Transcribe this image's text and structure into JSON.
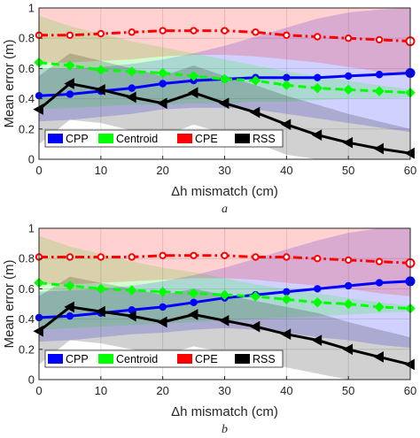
{
  "chart_data": [
    {
      "type": "line",
      "panel_label": "a",
      "xlabel": "Δh mismatch (cm)",
      "ylabel": "Mean error (m)",
      "xlim": [
        0,
        60
      ],
      "ylim": [
        0,
        1
      ],
      "xticks": [
        0,
        10,
        20,
        30,
        40,
        50,
        60
      ],
      "yticks": [
        0,
        0.2,
        0.4,
        0.6,
        0.8,
        1
      ],
      "x": [
        0,
        5,
        10,
        15,
        20,
        25,
        30,
        35,
        40,
        45,
        50,
        55,
        60
      ],
      "legend_placement": "bottom-left",
      "grid": true,
      "series": [
        {
          "name": "CPP",
          "color": "#0000ff",
          "linestyle": "solid",
          "marker": "circle",
          "values": [
            0.42,
            0.43,
            0.45,
            0.47,
            0.5,
            0.52,
            0.53,
            0.54,
            0.54,
            0.54,
            0.55,
            0.56,
            0.57
          ],
          "band_upper": [
            0.6,
            0.6,
            0.61,
            0.63,
            0.66,
            0.7,
            0.75,
            0.81,
            0.87,
            0.93,
            0.97,
            0.99,
            1.0
          ],
          "band_lower": [
            0.25,
            0.26,
            0.28,
            0.3,
            0.33,
            0.34,
            0.34,
            0.33,
            0.3,
            0.27,
            0.24,
            0.21,
            0.18
          ]
        },
        {
          "name": "Centroid",
          "color": "#00ff00",
          "linestyle": "dashed",
          "marker": "diamond",
          "values": [
            0.64,
            0.62,
            0.59,
            0.58,
            0.57,
            0.55,
            0.53,
            0.52,
            0.49,
            0.47,
            0.46,
            0.45,
            0.44
          ],
          "band_upper": [
            0.95,
            0.88,
            0.83,
            0.78,
            0.74,
            0.7,
            0.66,
            0.62,
            0.58,
            0.55,
            0.52,
            0.49,
            0.46
          ],
          "band_lower": [
            0.33,
            0.34,
            0.35,
            0.36,
            0.36,
            0.37,
            0.37,
            0.38,
            0.38,
            0.39,
            0.4,
            0.4,
            0.41
          ]
        },
        {
          "name": "CPE",
          "color": "#ff0000",
          "linestyle": "dashdot",
          "marker": "circle",
          "values": [
            0.82,
            0.82,
            0.83,
            0.84,
            0.85,
            0.85,
            0.85,
            0.84,
            0.82,
            0.81,
            0.8,
            0.79,
            0.78
          ],
          "band_upper": [
            1.0,
            1.0,
            1.0,
            1.0,
            1.0,
            1.0,
            1.0,
            1.0,
            1.0,
            1.0,
            1.0,
            1.0,
            1.0
          ],
          "band_lower": [
            0.64,
            0.64,
            0.65,
            0.66,
            0.68,
            0.69,
            0.69,
            0.68,
            0.66,
            0.64,
            0.61,
            0.58,
            0.55
          ]
        },
        {
          "name": "RSS",
          "color": "#000000",
          "linestyle": "solid",
          "marker": "triangle-left",
          "values": [
            0.33,
            0.5,
            0.46,
            0.41,
            0.37,
            0.44,
            0.37,
            0.31,
            0.23,
            0.16,
            0.11,
            0.07,
            0.04
          ],
          "band_upper": [
            0.55,
            0.7,
            0.65,
            0.6,
            0.55,
            0.62,
            0.55,
            0.49,
            0.42,
            0.36,
            0.3,
            0.25,
            0.2
          ],
          "band_lower": [
            0.1,
            0.26,
            0.24,
            0.19,
            0.15,
            0.23,
            0.17,
            0.11,
            0.03,
            0.0,
            0.0,
            0.0,
            0.0
          ]
        }
      ]
    },
    {
      "type": "line",
      "panel_label": "b",
      "xlabel": "Δh mismatch (cm)",
      "ylabel": "Mean error (m)",
      "xlim": [
        0,
        60
      ],
      "ylim": [
        0,
        1
      ],
      "xticks": [
        0,
        10,
        20,
        30,
        40,
        50,
        60
      ],
      "yticks": [
        0,
        0.2,
        0.4,
        0.6,
        0.8,
        1
      ],
      "x": [
        0,
        5,
        10,
        15,
        20,
        25,
        30,
        35,
        40,
        45,
        50,
        55,
        60
      ],
      "legend_placement": "bottom-left",
      "grid": true,
      "series": [
        {
          "name": "CPP",
          "color": "#0000ff",
          "linestyle": "solid",
          "marker": "circle",
          "values": [
            0.41,
            0.42,
            0.44,
            0.46,
            0.48,
            0.51,
            0.54,
            0.56,
            0.58,
            0.6,
            0.62,
            0.64,
            0.65
          ],
          "band_upper": [
            0.58,
            0.59,
            0.6,
            0.62,
            0.65,
            0.69,
            0.74,
            0.8,
            0.86,
            0.92,
            0.97,
            1.0,
            1.0
          ],
          "band_lower": [
            0.25,
            0.26,
            0.28,
            0.3,
            0.31,
            0.33,
            0.34,
            0.33,
            0.31,
            0.28,
            0.26,
            0.23,
            0.21
          ]
        },
        {
          "name": "Centroid",
          "color": "#00ff00",
          "linestyle": "dashed",
          "marker": "diamond",
          "values": [
            0.64,
            0.62,
            0.6,
            0.59,
            0.58,
            0.57,
            0.56,
            0.55,
            0.53,
            0.51,
            0.5,
            0.48,
            0.47
          ],
          "band_upper": [
            0.95,
            0.88,
            0.83,
            0.78,
            0.74,
            0.71,
            0.67,
            0.63,
            0.6,
            0.57,
            0.54,
            0.51,
            0.49
          ],
          "band_lower": [
            0.33,
            0.34,
            0.35,
            0.36,
            0.37,
            0.38,
            0.39,
            0.4,
            0.41,
            0.42,
            0.43,
            0.44,
            0.45
          ]
        },
        {
          "name": "CPE",
          "color": "#ff0000",
          "linestyle": "dashdot",
          "marker": "circle",
          "values": [
            0.81,
            0.81,
            0.81,
            0.81,
            0.82,
            0.82,
            0.82,
            0.81,
            0.81,
            0.8,
            0.79,
            0.78,
            0.77
          ],
          "band_upper": [
            1.0,
            1.0,
            1.0,
            1.0,
            1.0,
            1.0,
            1.0,
            1.0,
            1.0,
            1.0,
            1.0,
            1.0,
            1.0
          ],
          "band_lower": [
            0.63,
            0.63,
            0.64,
            0.65,
            0.66,
            0.67,
            0.67,
            0.66,
            0.64,
            0.62,
            0.6,
            0.57,
            0.55
          ]
        },
        {
          "name": "RSS",
          "color": "#000000",
          "linestyle": "solid",
          "marker": "triangle-left",
          "values": [
            0.32,
            0.48,
            0.45,
            0.42,
            0.38,
            0.43,
            0.39,
            0.35,
            0.3,
            0.26,
            0.2,
            0.15,
            0.1
          ],
          "band_upper": [
            0.55,
            0.68,
            0.64,
            0.6,
            0.56,
            0.6,
            0.56,
            0.52,
            0.48,
            0.44,
            0.38,
            0.33,
            0.28
          ],
          "band_lower": [
            0.1,
            0.26,
            0.24,
            0.2,
            0.16,
            0.22,
            0.18,
            0.14,
            0.08,
            0.04,
            0.0,
            0.0,
            0.0
          ]
        }
      ]
    }
  ]
}
